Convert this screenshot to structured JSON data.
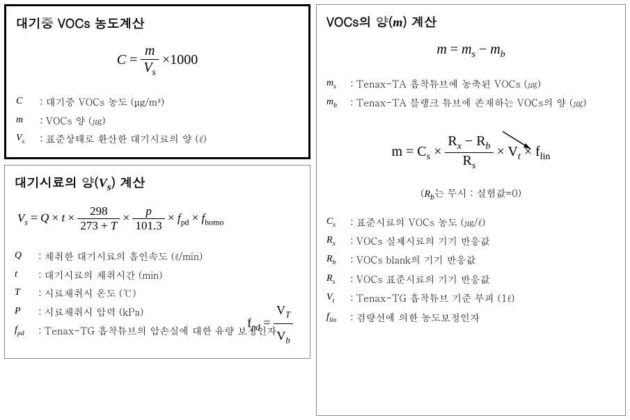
{
  "panel1": {
    "title": "대기중 VOCs 농도계산",
    "formula_lhs": "C",
    "formula_eq": "=",
    "formula_num": "m",
    "formula_den": "V",
    "formula_den_sub": "s",
    "formula_mult": "×1000",
    "defs": [
      {
        "sym": "C",
        "sub": "",
        "txt": "대기중 VOCs 농도 (μg/m³)"
      },
      {
        "sym": "m",
        "sub": "",
        "txt": "VOCs 양 (㎍)"
      },
      {
        "sym": "V",
        "sub": "s",
        "txt": "표준상태로 환산한 대기시료의 양 (ℓ)"
      }
    ]
  },
  "panel2": {
    "title": "대기시료의 양(Vₛ) 계산",
    "formula_lhs": "V",
    "formula_lhs_sub": "s",
    "formula_parts": {
      "q": "Q",
      "t": "t",
      "f1num": "298",
      "f1den_a": "273 +",
      "f1den_b": "T",
      "f2num": "p",
      "f2den": "101.3",
      "fpd": "f",
      "fpd_sub": "pd",
      "fhomo": "f",
      "fhomo_sub": "homo"
    },
    "defs": [
      {
        "sym": "Q",
        "sub": "",
        "txt": "채취한 대기시료의 흡인속도 (ℓ/min)"
      },
      {
        "sym": "t",
        "sub": "",
        "txt": "대기시료의 채취시간 (min)"
      },
      {
        "sym": "T",
        "sub": "",
        "txt": "시료채취시 온도 (℃)"
      },
      {
        "sym": "P",
        "sub": "",
        "txt": "시료채취시 압력 (kPa)"
      },
      {
        "sym": "f",
        "sub": "pd",
        "txt": "Tenax-TG 흡착튜브의 압손실에 대한 유량 보정인자"
      }
    ],
    "side_formula": {
      "lhs": "f",
      "lhs_sub": "pd",
      "num": "V",
      "num_sub": "T",
      "den": "V",
      "den_sub": "b"
    }
  },
  "panel3": {
    "title": "VOCs의 양(m) 계산",
    "formula1": {
      "lhs": "m",
      "r1": "m",
      "r1s": "s",
      "minus": "−",
      "r2": "m",
      "r2s": "b"
    },
    "defs1": [
      {
        "sym": "m",
        "sub": "s",
        "txt": "Tenax-TA 흡착튜브에 농축된 VOCs (㎍)"
      },
      {
        "sym": "m",
        "sub": "b",
        "txt": "Tenax-TA 블랭크 튜브에 존재하는 VOCs의 양 (㎍)"
      }
    ],
    "formula2": {
      "lhs": "m",
      "cs": "C",
      "cs_sub": "s",
      "num_a": "R",
      "num_a_sub": "x",
      "minus": "−",
      "num_b": "R",
      "num_b_sub": "b",
      "den": "R",
      "den_sub": "s",
      "vt": "V",
      "vt_sub": "t",
      "flin": "f",
      "flin_sub": "lin"
    },
    "note": "(Rᵦ는 무시 : 실험값=0)",
    "defs2": [
      {
        "sym": "C",
        "sub": "s",
        "txt": "표준시료의 VOCs 농도 (㎍/ℓ)"
      },
      {
        "sym": "R",
        "sub": "x",
        "txt": "VOCs 실제시료의 기기 반응값"
      },
      {
        "sym": "R",
        "sub": "b",
        "txt": "VOCs blank의 기기 반응값"
      },
      {
        "sym": "R",
        "sub": "s",
        "txt": "VOCs 표준시료의 기기 반응값"
      },
      {
        "sym": "V",
        "sub": "t",
        "txt": "Tenax-TG 흡착튜브 기준 부피 (1ℓ)"
      },
      {
        "sym": "f",
        "sub": "lin",
        "txt": "검량선에 의한 농도보정인자"
      }
    ]
  }
}
